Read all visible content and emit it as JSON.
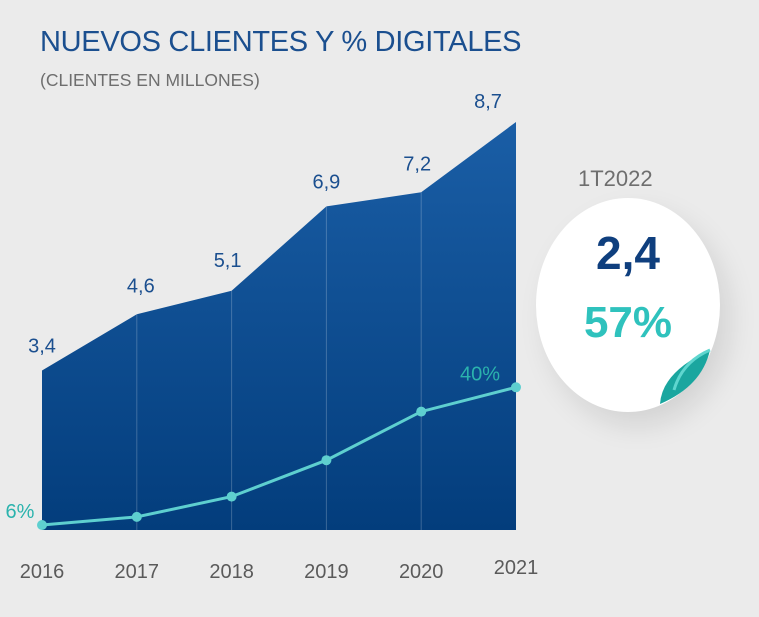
{
  "header": {
    "title": "NUEVOS CLIENTES Y % DIGITALES",
    "subtitle": "(CLIENTES EN MILLONES)"
  },
  "highlight": {
    "period": "1T2022",
    "value": "2,4",
    "percent": "57%"
  },
  "colors": {
    "area_top": "#1a5ea6",
    "area_bottom": "#033d7c",
    "line": "#5ecfcf",
    "value_text": "#1b4f8f",
    "percent_text": "#2bb3ad",
    "accent_teal": "#2fc2bd"
  },
  "chart_data": {
    "type": "area",
    "categories": [
      "2016",
      "2017",
      "2018",
      "2019",
      "2020",
      "2021"
    ],
    "series": [
      {
        "values": [
          3.4,
          4.6,
          5.1,
          6.9,
          7.2,
          8.7
        ],
        "labels": [
          "3,4",
          "4,6",
          "5,1",
          "6,9",
          "7,2",
          "8,7"
        ]
      },
      {
        "values": [
          6,
          8,
          13,
          22,
          34,
          40
        ],
        "labels": [
          "6%",
          "",
          "",
          "",
          "",
          "40%"
        ]
      }
    ],
    "title": "NUEVOS CLIENTES Y % DIGITALES",
    "subtitle": "(CLIENTES EN MILLONES)",
    "grid": false
  }
}
